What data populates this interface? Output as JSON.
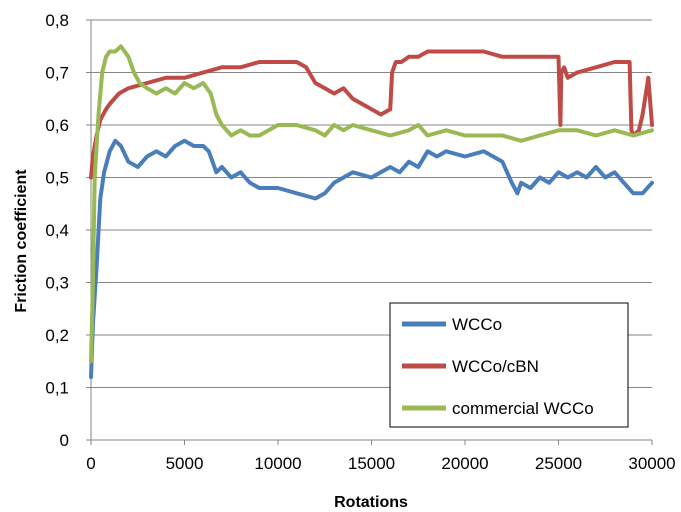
{
  "chart_data": {
    "type": "line",
    "xlabel": "Rotations",
    "ylabel": "Friction coefficient",
    "xlim": [
      0,
      30000
    ],
    "ylim": [
      0,
      0.8
    ],
    "x_ticks": [
      0,
      5000,
      10000,
      15000,
      20000,
      25000,
      30000
    ],
    "x_tick_labels": [
      "0",
      "5000",
      "10000",
      "15000",
      "20000",
      "25000",
      "30000"
    ],
    "y_ticks": [
      0,
      0.1,
      0.2,
      0.3,
      0.4,
      0.5,
      0.6,
      0.7,
      0.8
    ],
    "y_tick_labels": [
      "0",
      "0,1",
      "0,2",
      "0,3",
      "0,4",
      "0,5",
      "0,6",
      "0,7",
      "0,8"
    ],
    "grid": "horizontal",
    "legend_position": "lower-right",
    "series": [
      {
        "name": "WCCo",
        "color": "#4a7ebb",
        "x": [
          0,
          100,
          300,
          500,
          700,
          1000,
          1300,
          1600,
          2000,
          2500,
          3000,
          3500,
          4000,
          4500,
          5000,
          5500,
          6000,
          6300,
          6700,
          7000,
          7500,
          8000,
          8500,
          9000,
          10000,
          11000,
          12000,
          12500,
          13000,
          13500,
          14000,
          15000,
          16000,
          16500,
          17000,
          17500,
          18000,
          18500,
          19000,
          20000,
          21000,
          21500,
          22000,
          22500,
          22800,
          23000,
          23500,
          24000,
          24500,
          25000,
          25500,
          26000,
          26500,
          27000,
          27500,
          28000,
          28500,
          29000,
          29500,
          30000
        ],
        "y": [
          0.12,
          0.22,
          0.33,
          0.46,
          0.51,
          0.55,
          0.57,
          0.56,
          0.53,
          0.52,
          0.54,
          0.55,
          0.54,
          0.56,
          0.57,
          0.56,
          0.56,
          0.55,
          0.51,
          0.52,
          0.5,
          0.51,
          0.49,
          0.48,
          0.48,
          0.47,
          0.46,
          0.47,
          0.49,
          0.5,
          0.51,
          0.5,
          0.52,
          0.51,
          0.53,
          0.52,
          0.55,
          0.54,
          0.55,
          0.54,
          0.55,
          0.54,
          0.53,
          0.49,
          0.47,
          0.49,
          0.48,
          0.5,
          0.49,
          0.51,
          0.5,
          0.51,
          0.5,
          0.52,
          0.5,
          0.51,
          0.49,
          0.47,
          0.47,
          0.49
        ]
      },
      {
        "name": "WCCo/cBN",
        "color": "#be4b48",
        "x": [
          0,
          50,
          100,
          300,
          500,
          800,
          1000,
          1500,
          2000,
          3000,
          4000,
          5000,
          6000,
          7000,
          8000,
          9000,
          10000,
          11000,
          11500,
          12000,
          12500,
          13000,
          13500,
          14000,
          14500,
          15000,
          15500,
          16000,
          16100,
          16300,
          16600,
          17000,
          17500,
          18000,
          19000,
          20000,
          21000,
          22000,
          23000,
          24000,
          25000,
          25100,
          25150,
          25300,
          25500,
          26000,
          27000,
          28000,
          28800,
          28900,
          29000,
          29300,
          29500,
          29800,
          30000
        ],
        "y": [
          0.5,
          0.52,
          0.54,
          0.58,
          0.61,
          0.63,
          0.64,
          0.66,
          0.67,
          0.68,
          0.69,
          0.69,
          0.7,
          0.71,
          0.71,
          0.72,
          0.72,
          0.72,
          0.71,
          0.68,
          0.67,
          0.66,
          0.67,
          0.65,
          0.64,
          0.63,
          0.62,
          0.63,
          0.7,
          0.72,
          0.72,
          0.73,
          0.73,
          0.74,
          0.74,
          0.74,
          0.74,
          0.73,
          0.73,
          0.73,
          0.73,
          0.6,
          0.7,
          0.71,
          0.69,
          0.7,
          0.71,
          0.72,
          0.72,
          0.59,
          0.58,
          0.59,
          0.62,
          0.69,
          0.6
        ]
      },
      {
        "name": "commercial WCCo",
        "color": "#98b954",
        "x": [
          0,
          100,
          200,
          400,
          600,
          800,
          1000,
          1300,
          1600,
          1800,
          2000,
          2300,
          2600,
          3000,
          3500,
          4000,
          4500,
          5000,
          5500,
          6000,
          6400,
          6700,
          7000,
          7500,
          8000,
          8500,
          9000,
          10000,
          11000,
          12000,
          12500,
          13000,
          13500,
          14000,
          15000,
          16000,
          17000,
          17500,
          18000,
          19000,
          20000,
          21000,
          22000,
          23000,
          24000,
          25000,
          26000,
          27000,
          28000,
          29000,
          30000
        ],
        "y": [
          0.15,
          0.3,
          0.5,
          0.62,
          0.7,
          0.73,
          0.74,
          0.74,
          0.75,
          0.74,
          0.73,
          0.7,
          0.68,
          0.67,
          0.66,
          0.67,
          0.66,
          0.68,
          0.67,
          0.68,
          0.66,
          0.62,
          0.6,
          0.58,
          0.59,
          0.58,
          0.58,
          0.6,
          0.6,
          0.59,
          0.58,
          0.6,
          0.59,
          0.6,
          0.59,
          0.58,
          0.59,
          0.6,
          0.58,
          0.59,
          0.58,
          0.58,
          0.58,
          0.57,
          0.58,
          0.59,
          0.59,
          0.58,
          0.59,
          0.58,
          0.59
        ]
      }
    ]
  }
}
